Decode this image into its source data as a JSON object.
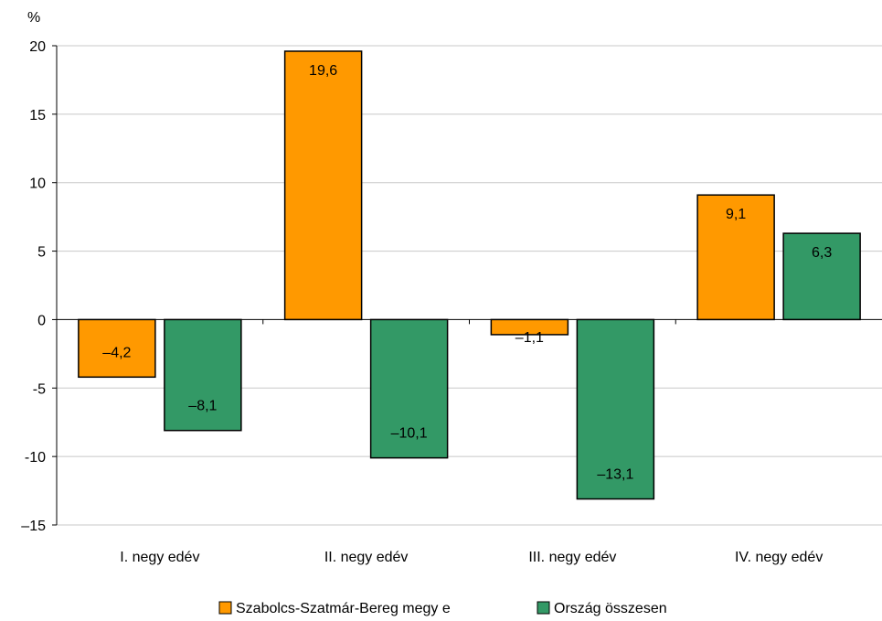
{
  "chart_data": {
    "type": "bar",
    "unit_label": "%",
    "categories": [
      "I. negy edév",
      "II. negy edév",
      "III. negy edév",
      "IV. negy edév"
    ],
    "series": [
      {
        "name": "Szabolcs-Szatmár-Bereg megy e",
        "color": "#FF9900",
        "values": [
          -4.2,
          19.6,
          -1.1,
          9.1
        ],
        "labels": [
          "–4,2",
          "19,6",
          "–1,1",
          "9,1"
        ]
      },
      {
        "name": "Ország összesen",
        "color": "#339966",
        "values": [
          -8.1,
          -10.1,
          -13.1,
          6.3
        ],
        "labels": [
          "–8,1",
          "–10,1",
          "–13,1",
          "6,3"
        ]
      }
    ],
    "yticks": [
      20,
      15,
      10,
      5,
      0,
      -5,
      -10,
      -15
    ],
    "ytick_labels": [
      "20",
      "15",
      "10",
      "5",
      "0",
      "-5",
      "-10",
      "–15"
    ],
    "ylim": [
      -15,
      20
    ],
    "grid": true,
    "legend_position": "bottom"
  }
}
